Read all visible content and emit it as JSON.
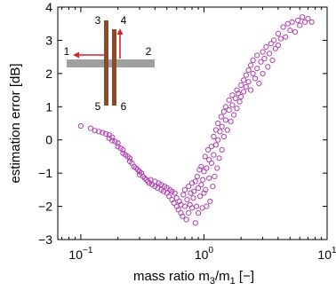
{
  "chart_data": {
    "type": "scatter",
    "title": "",
    "xlabel": "mass ratio m_3/m_1 [−]",
    "xlabel_parts": {
      "main": "mass ratio m",
      "sub1": "3",
      "mid": "/m",
      "sub2": "1",
      "tail": " [−]"
    },
    "ylabel": "estimation error [dB]",
    "xscale": "log",
    "xlim": [
      0.065,
      10
    ],
    "ylim": [
      -3,
      4
    ],
    "grid": false,
    "x_ticks": [
      {
        "value": 0.1,
        "base": "10",
        "exp": "−1"
      },
      {
        "value": 1,
        "base": "10",
        "exp": "0"
      },
      {
        "value": 10,
        "base": "10",
        "exp": "1"
      }
    ],
    "y_ticks": [
      -3,
      -2,
      -1,
      0,
      1,
      2,
      3,
      4
    ],
    "marker_color": "#b040b0",
    "marker": "open-circle",
    "points": [
      [
        0.1,
        0.42
      ],
      [
        0.12,
        0.35
      ],
      [
        0.13,
        0.28
      ],
      [
        0.14,
        0.25
      ],
      [
        0.15,
        0.22
      ],
      [
        0.16,
        0.18
      ],
      [
        0.17,
        0.15
      ],
      [
        0.17,
        0.05
      ],
      [
        0.18,
        0.08
      ],
      [
        0.18,
        -0.02
      ],
      [
        0.19,
        -0.05
      ],
      [
        0.2,
        -0.1
      ],
      [
        0.2,
        -0.2
      ],
      [
        0.21,
        -0.25
      ],
      [
        0.22,
        -0.3
      ],
      [
        0.22,
        -0.4
      ],
      [
        0.23,
        -0.45
      ],
      [
        0.24,
        -0.5
      ],
      [
        0.25,
        -0.55
      ],
      [
        0.25,
        -0.65
      ],
      [
        0.26,
        -0.7
      ],
      [
        0.27,
        -0.8
      ],
      [
        0.28,
        -0.85
      ],
      [
        0.29,
        -0.9
      ],
      [
        0.3,
        -0.95
      ],
      [
        0.3,
        -1.05
      ],
      [
        0.31,
        -1.0
      ],
      [
        0.32,
        -1.1
      ],
      [
        0.33,
        -1.15
      ],
      [
        0.34,
        -1.2
      ],
      [
        0.35,
        -1.25
      ],
      [
        0.36,
        -1.3
      ],
      [
        0.37,
        -1.2
      ],
      [
        0.38,
        -1.35
      ],
      [
        0.4,
        -1.4
      ],
      [
        0.4,
        -1.25
      ],
      [
        0.42,
        -1.45
      ],
      [
        0.43,
        -1.3
      ],
      [
        0.45,
        -1.5
      ],
      [
        0.45,
        -1.35
      ],
      [
        0.47,
        -1.55
      ],
      [
        0.48,
        -1.4
      ],
      [
        0.5,
        -1.6
      ],
      [
        0.5,
        -1.45
      ],
      [
        0.52,
        -1.7
      ],
      [
        0.53,
        -1.5
      ],
      [
        0.55,
        -1.8
      ],
      [
        0.55,
        -1.55
      ],
      [
        0.57,
        -1.9
      ],
      [
        0.58,
        -1.6
      ],
      [
        0.6,
        -2.0
      ],
      [
        0.6,
        -1.75
      ],
      [
        0.62,
        -2.1
      ],
      [
        0.63,
        -1.85
      ],
      [
        0.65,
        -2.2
      ],
      [
        0.65,
        -1.95
      ],
      [
        0.67,
        -2.3
      ],
      [
        0.68,
        -1.65
      ],
      [
        0.7,
        -2.0
      ],
      [
        0.7,
        -1.5
      ],
      [
        0.72,
        -2.4
      ],
      [
        0.73,
        -1.8
      ],
      [
        0.75,
        -2.2
      ],
      [
        0.75,
        -1.4
      ],
      [
        0.77,
        -1.95
      ],
      [
        0.78,
        -1.6
      ],
      [
        0.8,
        -2.05
      ],
      [
        0.8,
        -1.3
      ],
      [
        0.82,
        -1.75
      ],
      [
        0.83,
        -1.55
      ],
      [
        0.85,
        -2.5
      ],
      [
        0.85,
        -1.25
      ],
      [
        0.87,
        -2.0
      ],
      [
        0.88,
        -1.1
      ],
      [
        0.9,
        -2.2
      ],
      [
        0.9,
        -1.45
      ],
      [
        0.92,
        -0.9
      ],
      [
        0.93,
        -1.7
      ],
      [
        0.95,
        -1.35
      ],
      [
        0.95,
        -0.8
      ],
      [
        0.97,
        -2.05
      ],
      [
        0.98,
        -1.2
      ],
      [
        1.0,
        -0.95
      ],
      [
        1.0,
        -1.6
      ],
      [
        1.02,
        -0.5
      ],
      [
        1.03,
        -1.5
      ],
      [
        1.05,
        -0.85
      ],
      [
        1.05,
        -2.0
      ],
      [
        1.08,
        -0.3
      ],
      [
        1.1,
        -1.15
      ],
      [
        1.1,
        -0.6
      ],
      [
        1.12,
        -1.85
      ],
      [
        1.15,
        -0.7
      ],
      [
        1.15,
        -0.2
      ],
      [
        1.18,
        -1.4
      ],
      [
        1.2,
        -0.45
      ],
      [
        1.2,
        0.1
      ],
      [
        1.22,
        -1.1
      ],
      [
        1.25,
        -0.15
      ],
      [
        1.25,
        0.3
      ],
      [
        1.28,
        -0.85
      ],
      [
        1.3,
        0.0
      ],
      [
        1.3,
        0.5
      ],
      [
        1.33,
        -0.55
      ],
      [
        1.35,
        0.25
      ],
      [
        1.38,
        0.7
      ],
      [
        1.4,
        -0.3
      ],
      [
        1.4,
        0.4
      ],
      [
        1.45,
        0.85
      ],
      [
        1.45,
        0.1
      ],
      [
        1.5,
        0.6
      ],
      [
        1.5,
        1.0
      ],
      [
        1.55,
        0.3
      ],
      [
        1.6,
        0.9
      ],
      [
        1.6,
        1.2
      ],
      [
        1.65,
        0.55
      ],
      [
        1.7,
        1.05
      ],
      [
        1.7,
        1.35
      ],
      [
        1.75,
        0.75
      ],
      [
        1.8,
        1.25
      ],
      [
        1.85,
        1.5
      ],
      [
        1.85,
        0.95
      ],
      [
        1.9,
        1.4
      ],
      [
        1.95,
        1.15
      ],
      [
        2.0,
        1.65
      ],
      [
        2.0,
        1.3
      ],
      [
        2.1,
        1.8
      ],
      [
        2.1,
        1.45
      ],
      [
        2.2,
        1.95
      ],
      [
        2.2,
        1.6
      ],
      [
        2.3,
        2.1
      ],
      [
        2.3,
        1.75
      ],
      [
        2.4,
        2.25
      ],
      [
        2.4,
        1.5
      ],
      [
        2.5,
        2.0
      ],
      [
        2.5,
        2.4
      ],
      [
        2.6,
        1.85
      ],
      [
        2.7,
        2.55
      ],
      [
        2.7,
        2.15
      ],
      [
        2.8,
        1.7
      ],
      [
        2.9,
        2.35
      ],
      [
        3.0,
        2.65
      ],
      [
        3.0,
        2.0
      ],
      [
        3.1,
        2.45
      ],
      [
        3.2,
        2.8
      ],
      [
        3.3,
        2.2
      ],
      [
        3.4,
        2.6
      ],
      [
        3.5,
        2.9
      ],
      [
        3.6,
        2.4
      ],
      [
        3.7,
        3.0
      ],
      [
        3.8,
        2.75
      ],
      [
        4.0,
        3.2
      ],
      [
        4.0,
        2.85
      ],
      [
        4.2,
        3.05
      ],
      [
        4.4,
        3.4
      ],
      [
        4.6,
        3.1
      ],
      [
        4.8,
        3.5
      ],
      [
        5.0,
        3.3
      ],
      [
        5.2,
        3.55
      ],
      [
        5.5,
        3.25
      ],
      [
        5.8,
        3.6
      ],
      [
        6.0,
        3.45
      ],
      [
        6.3,
        3.7
      ],
      [
        6.6,
        3.55
      ],
      [
        7.0,
        3.65
      ],
      [
        7.5,
        3.55
      ]
    ]
  },
  "inset": {
    "labels": [
      "1",
      "2",
      "3",
      "4",
      "5",
      "6"
    ],
    "bar_color": "#a0a0a0",
    "rod_color": "#8b4a2b",
    "arrow_color": "#dd2222"
  }
}
